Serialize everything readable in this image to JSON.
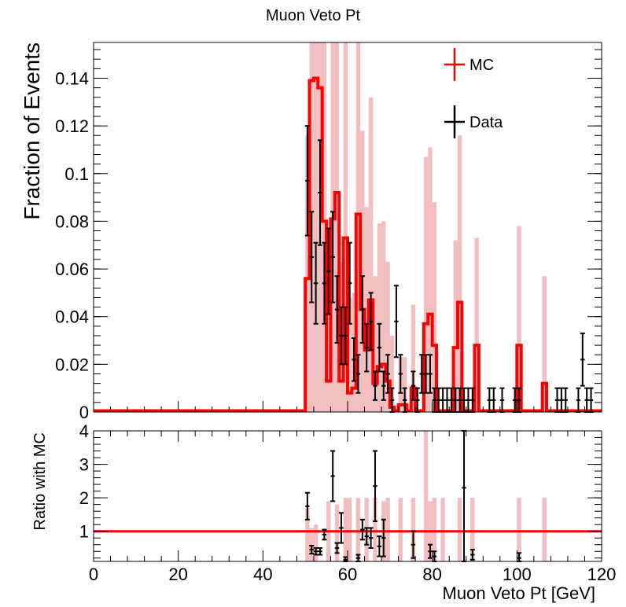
{
  "title": "Muon Veto Pt",
  "legend": {
    "placement": "top-right",
    "mc": "MC",
    "data": "Data"
  },
  "colors": {
    "mc": "#ff0000",
    "data": "#000000",
    "band": "#e07070"
  },
  "chart_data": [
    {
      "type": "line",
      "panel": "main",
      "ylabel": "Fraction of Events",
      "xlabel": "",
      "xlim": [
        0,
        120
      ],
      "ylim": [
        0,
        0.155
      ],
      "yticks": [
        0,
        0.02,
        0.04,
        0.06,
        0.08,
        0.1,
        0.12,
        0.14
      ],
      "ytick_labels": [
        "0",
        "0.02",
        "0.04",
        "0.06",
        "0.08",
        "0.1",
        "0.12",
        "0.14"
      ],
      "grid": false,
      "bin_width": 1,
      "series": [
        {
          "name": "MC",
          "kind": "histogram-step",
          "x_edges": [
            0,
            49,
            50,
            51,
            52,
            53,
            54,
            55,
            56,
            57,
            58,
            59,
            60,
            61,
            62,
            63,
            64,
            65,
            66,
            67,
            68,
            69,
            70,
            71,
            72,
            73,
            74,
            75,
            76,
            77,
            78,
            79,
            80,
            81,
            82,
            83,
            84,
            85,
            86,
            87,
            88,
            89,
            90,
            91,
            92,
            93,
            94,
            95,
            96,
            97,
            98,
            99,
            100,
            101,
            102,
            103,
            104,
            105,
            106,
            107,
            108,
            109,
            110,
            111,
            112,
            113,
            114,
            115,
            116,
            117,
            118,
            119,
            120
          ],
          "values": [
            0.0005,
            0.0005,
            0.056,
            0.139,
            0.14,
            0.136,
            0.08,
            0.013,
            0.081,
            0.092,
            0.013,
            0.073,
            0.008,
            0.01,
            0.083,
            0.043,
            0.026,
            0.047,
            0.012,
            0.019,
            0.02,
            0.013,
            0.002,
            0.0005,
            0.003,
            0.003,
            0.0005,
            0.01,
            0.0005,
            0.0005,
            0.037,
            0.041,
            0.028,
            0.0005,
            0.0005,
            0.0005,
            0.0005,
            0.027,
            0.046,
            0.0005,
            0.0005,
            0.0005,
            0.028,
            0.0005,
            0.0005,
            0.0005,
            0.0005,
            0.0005,
            0.0005,
            0.0005,
            0.0005,
            0.0005,
            0.028,
            0.0005,
            0.0005,
            0.0005,
            0.0005,
            0.0005,
            0.012,
            0.0005,
            0.0005,
            0.0005,
            0.0005,
            0.0005,
            0.0005,
            0.0005,
            0.0005,
            0.0005,
            0.0005,
            0.0005,
            0.0005,
            0.0005
          ],
          "uncertainty": [
            0,
            0,
            0.06,
            0.155,
            0.155,
            0.155,
            0.15,
            0.05,
            0.09,
            0.095,
            0.05,
            0.085,
            0.04,
            0.04,
            0.1,
            0.075,
            0.06,
            0.085,
            0.045,
            0.06,
            0.06,
            0.05,
            0.03,
            0,
            0.02,
            0.02,
            0,
            0.035,
            0,
            0,
            0.07,
            0.07,
            0.06,
            0,
            0,
            0,
            0,
            0.045,
            0.07,
            0,
            0,
            0,
            0.045,
            0,
            0,
            0,
            0,
            0,
            0,
            0,
            0,
            0,
            0.05,
            0,
            0,
            0,
            0,
            0,
            0.045,
            0,
            0,
            0,
            0,
            0,
            0,
            0,
            0,
            0,
            0,
            0,
            0,
            0
          ]
        },
        {
          "name": "Data",
          "kind": "points-with-errors",
          "x": [
            50.5,
            51.5,
            52.5,
            53.5,
            54.5,
            55.5,
            56.5,
            57.5,
            58.5,
            59.5,
            60.5,
            61.5,
            62.5,
            63.5,
            64.5,
            65.5,
            66.5,
            67.5,
            68.5,
            69.5,
            70.5,
            71.5,
            72.5,
            73.5,
            75.5,
            76.5,
            77.5,
            78.5,
            79.5,
            80.5,
            81.5,
            82.5,
            83.5,
            84.5,
            85.5,
            86.5,
            87.5,
            88.5,
            89.5,
            93.5,
            94.5,
            96.5,
            99.5,
            100.5,
            109.5,
            110.5,
            111.5,
            114.5,
            115.5,
            116.5,
            117.5
          ],
          "y": [
            0.097,
            0.065,
            0.054,
            0.092,
            0.054,
            0.059,
            0.065,
            0.043,
            0.032,
            0.032,
            0.054,
            0.022,
            0.016,
            0.043,
            0.027,
            0.038,
            0.011,
            0.027,
            0.011,
            0.016,
            0.005,
            0.038,
            0.016,
            0.005,
            0.011,
            0.005,
            0.016,
            0.016,
            0.016,
            0.005,
            0.005,
            0.005,
            0.005,
            0.005,
            0.005,
            0.005,
            0.005,
            0.005,
            0.005,
            0.005,
            0.005,
            0.005,
            0.005,
            0.005,
            0.005,
            0.005,
            0.005,
            0.005,
            0.022,
            0.005,
            0.005
          ],
          "yerr": [
            0.023,
            0.019,
            0.017,
            0.022,
            0.017,
            0.018,
            0.019,
            0.014,
            0.012,
            0.012,
            0.017,
            0.009,
            0.008,
            0.014,
            0.01,
            0.012,
            0.006,
            0.01,
            0.006,
            0.008,
            0.005,
            0.015,
            0.008,
            0.005,
            0.006,
            0.005,
            0.008,
            0.008,
            0.008,
            0.005,
            0.005,
            0.005,
            0.005,
            0.005,
            0.005,
            0.005,
            0.005,
            0.005,
            0.005,
            0.005,
            0.005,
            0.005,
            0.005,
            0.005,
            0.005,
            0.005,
            0.005,
            0.005,
            0.011,
            0.005,
            0.005
          ]
        }
      ]
    },
    {
      "type": "scatter",
      "panel": "ratio",
      "ylabel": "Ratio with MC",
      "xlabel": "Muon Veto Pt [GeV]",
      "xlim": [
        0,
        120
      ],
      "ylim": [
        0.1,
        4
      ],
      "xticks": [
        0,
        20,
        40,
        60,
        80,
        100,
        120
      ],
      "xtick_labels": [
        "0",
        "20",
        "40",
        "60",
        "80",
        "100",
        "120"
      ],
      "yticks": [
        1,
        2,
        3,
        4
      ],
      "ytick_labels": [
        "1",
        "2",
        "3",
        "4"
      ],
      "reference_line": 1,
      "series": [
        {
          "name": "Data",
          "kind": "ratio-points",
          "x": [
            50.5,
            51.5,
            52.5,
            53.5,
            54.5,
            56.5,
            57.5,
            58.5,
            59.5,
            62.5,
            63.5,
            64.5,
            65.5,
            66.5,
            67.5,
            68.5,
            75.5,
            79.5,
            80.5,
            87.5,
            89.5,
            100.5
          ],
          "y": [
            1.75,
            0.45,
            0.4,
            0.4,
            0.9,
            2.65,
            0.5,
            1.1,
            0.15,
            0.2,
            1.05,
            0.85,
            0.8,
            2.35,
            0.55,
            0.8,
            0.6,
            0.4,
            0.25,
            2.3,
            0.3,
            0.2
          ],
          "yerr": [
            0.4,
            0.12,
            0.1,
            0.1,
            0.15,
            0.75,
            0.15,
            0.45,
            0.08,
            0.1,
            0.3,
            0.25,
            0.3,
            1.05,
            0.3,
            0.55,
            0.4,
            0.2,
            0.15,
            2.3,
            0.15,
            0.15
          ]
        }
      ],
      "mc_uncertainty_bins": [
        {
          "x": 50.5,
          "low": 0.1,
          "high": 1.7
        },
        {
          "x": 51.5,
          "low": 0.1,
          "high": 1.1
        },
        {
          "x": 52.5,
          "low": 0.1,
          "high": 1.2
        },
        {
          "x": 55.5,
          "low": 0.1,
          "high": 1.9
        },
        {
          "x": 57.5,
          "low": 0.1,
          "high": 1.8
        },
        {
          "x": 59.5,
          "low": 0.1,
          "high": 2.0
        },
        {
          "x": 60.5,
          "low": 0.1,
          "high": 2.0
        },
        {
          "x": 62.5,
          "low": 0.1,
          "high": 2.0
        },
        {
          "x": 64.5,
          "low": 0.1,
          "high": 2.0
        },
        {
          "x": 66.5,
          "low": 0.1,
          "high": 2.0
        },
        {
          "x": 68.5,
          "low": 0.1,
          "high": 1.9
        },
        {
          "x": 69.5,
          "low": 0.1,
          "high": 2.0
        },
        {
          "x": 72.5,
          "low": 0.1,
          "high": 2.0
        },
        {
          "x": 75.5,
          "low": 0.1,
          "high": 2.0
        },
        {
          "x": 78.5,
          "low": 0.1,
          "high": 4.0
        },
        {
          "x": 79.5,
          "low": 0.1,
          "high": 1.9
        },
        {
          "x": 80.5,
          "low": 0.1,
          "high": 2.0
        },
        {
          "x": 82.5,
          "low": 0.1,
          "high": 2.0
        },
        {
          "x": 86.5,
          "low": 0.1,
          "high": 2.0
        },
        {
          "x": 89.5,
          "low": 0.1,
          "high": 2.0
        },
        {
          "x": 100.5,
          "low": 0.1,
          "high": 2.0
        },
        {
          "x": 106.5,
          "low": 0.1,
          "high": 2.0
        }
      ]
    }
  ]
}
